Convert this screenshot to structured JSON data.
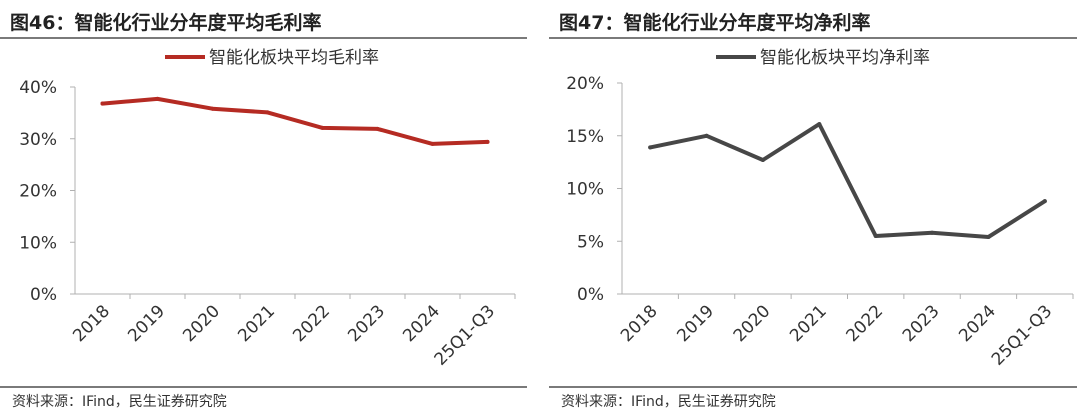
{
  "chart_data": [
    {
      "type": "line",
      "figure_title": "图46：智能化行业分年度平均毛利率",
      "title": "",
      "xlabel": "",
      "ylabel": "",
      "categories": [
        "2018",
        "2019",
        "2020",
        "2021",
        "2022",
        "2023",
        "2024",
        "25Q1-Q3"
      ],
      "series": [
        {
          "name": "智能化板块平均毛利率",
          "color": "#b52b23",
          "values": [
            36.8,
            37.7,
            35.8,
            35.1,
            32.1,
            31.9,
            29.0,
            29.4
          ]
        }
      ],
      "ylim": [
        0,
        40
      ],
      "yticks": [
        "0%",
        "10%",
        "20%",
        "30%",
        "40%"
      ],
      "grid": false,
      "legend": "top-center",
      "source": "资料来源：IFind，民生证券研究院"
    },
    {
      "type": "line",
      "figure_title": "图47：智能化行业分年度平均净利率",
      "title": "",
      "xlabel": "",
      "ylabel": "",
      "categories": [
        "2018",
        "2019",
        "2020",
        "2021",
        "2022",
        "2023",
        "2024",
        "25Q1-Q3"
      ],
      "series": [
        {
          "name": "智能化板块平均净利率",
          "color": "#474747",
          "values": [
            13.9,
            15.0,
            12.7,
            16.1,
            5.5,
            5.8,
            5.4,
            8.8
          ]
        }
      ],
      "ylim": [
        0,
        20
      ],
      "yticks": [
        "0%",
        "5%",
        "10%",
        "15%",
        "20%"
      ],
      "grid": false,
      "legend": "top-center",
      "source": "资料来源：IFind，民生证券研究院"
    }
  ]
}
